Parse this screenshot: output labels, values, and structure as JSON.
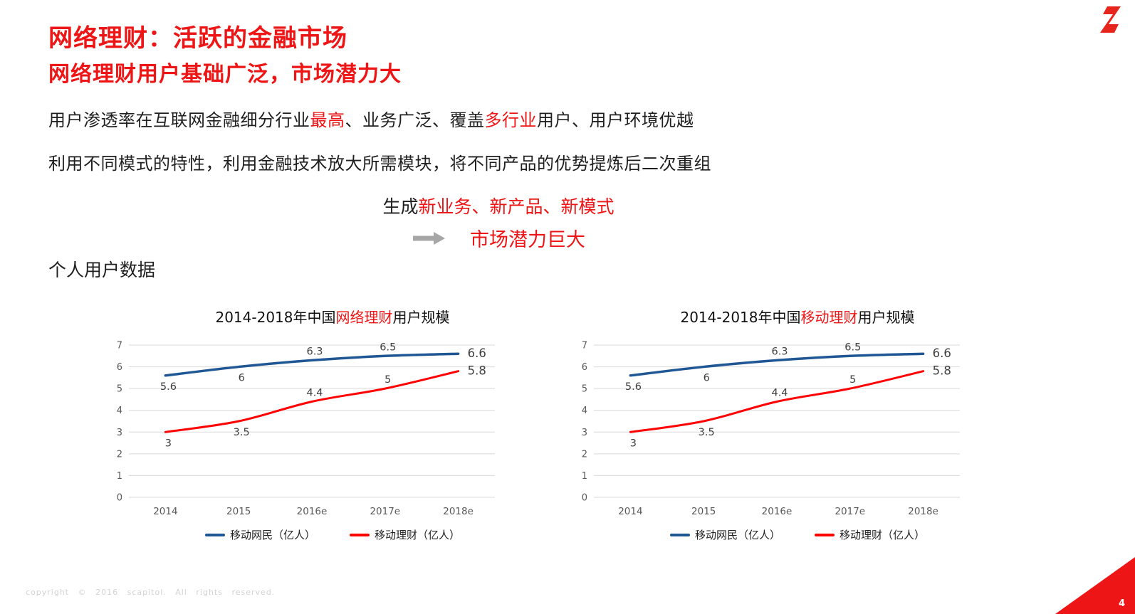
{
  "colors": {
    "accent_red": "#ed1515",
    "chart_blue": "#1f5795",
    "chart_red": "#ff0000",
    "axis_gray": "#595959",
    "grid_gray": "#d9d9d9",
    "label_gray": "#404040"
  },
  "header": {
    "title": "网络理财：活跃的金融市场",
    "subtitle": "网络理财用户基础广泛，市场潜力大"
  },
  "body": {
    "line1": [
      {
        "text": "用户渗透率在互联网金融细分行业"
      },
      {
        "text": "最高",
        "red": true
      },
      {
        "text": "、业务广泛、覆盖"
      },
      {
        "text": "多行业",
        "red": true
      },
      {
        "text": "用户、用户环境优越"
      }
    ],
    "line2": "利用不同模式的特性，利用金融技术放大所需模块，将不同产品的优势提炼后二次重组",
    "generate": [
      {
        "text": "生成"
      },
      {
        "text": "新业务、新产品、新模式",
        "red": true
      }
    ],
    "conclusion": "市场潜力巨大",
    "section_label": "个人用户数据"
  },
  "chart_data": [
    {
      "type": "line",
      "title_prefix": "2014-2018年中国",
      "title_highlight": "网络理财",
      "title_suffix": "用户规模",
      "categories": [
        "2014",
        "2015",
        "2016e",
        "2017e",
        "2018e"
      ],
      "series": [
        {
          "name": "移动网民（亿人）",
          "color": "#1f5795",
          "values": [
            5.6,
            6,
            6.3,
            6.5,
            6.6
          ]
        },
        {
          "name": "移动理财（亿人）",
          "color": "#ff0000",
          "values": [
            3,
            3.5,
            4.4,
            5,
            5.8
          ]
        }
      ],
      "ylim": [
        0,
        7
      ],
      "yticks": [
        0,
        1,
        2,
        3,
        4,
        5,
        6,
        7
      ],
      "grid": true,
      "legend_position": "bottom"
    },
    {
      "type": "line",
      "title_prefix": "2014-2018年中国",
      "title_highlight": "移动理财",
      "title_suffix": "用户规模",
      "categories": [
        "2014",
        "2015",
        "2016e",
        "2017e",
        "2018e"
      ],
      "series": [
        {
          "name": "移动网民（亿人）",
          "color": "#1f5795",
          "values": [
            5.6,
            6,
            6.3,
            6.5,
            6.6
          ]
        },
        {
          "name": "移动理财（亿人）",
          "color": "#ff0000",
          "values": [
            3,
            3.5,
            4.4,
            5,
            5.8
          ]
        }
      ],
      "ylim": [
        0,
        7
      ],
      "yticks": [
        0,
        1,
        2,
        3,
        4,
        5,
        6,
        7
      ],
      "grid": true,
      "legend_position": "bottom"
    }
  ],
  "footer": {
    "copyright": "copyright  ©  2016  scapitol.  All  rights  reserved.",
    "page_number": "4"
  }
}
